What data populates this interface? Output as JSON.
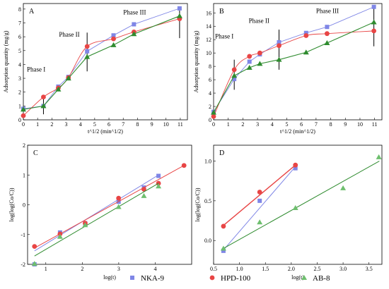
{
  "colors": {
    "nka": "#7f86e6",
    "hpd": "#e84545",
    "ab": "#2e8b2e",
    "ab_light": "#6ebf6e"
  },
  "legend": [
    {
      "label": "NKA-9",
      "marker": "square",
      "color": "#7f86e6"
    },
    {
      "label": "HPD-100",
      "marker": "circle",
      "color": "#e84545"
    },
    {
      "label": "AB-8",
      "marker": "triangle",
      "color": "#6ebf6e"
    }
  ],
  "chart_data": [
    {
      "panel": "A",
      "type": "line",
      "xlabel": "t^1/2 (min^1/2)",
      "ylabel": "Adsorption quantity (mg/g)",
      "xlim": [
        0,
        11.5
      ],
      "ylim": [
        0,
        8.4
      ],
      "xticks": [
        0,
        1,
        2,
        3,
        4,
        5,
        6,
        7,
        8,
        9,
        10,
        11
      ],
      "yticks": [
        0,
        1,
        2,
        3,
        4,
        5,
        6,
        7,
        8
      ],
      "annotations": [
        {
          "text": "Phase I",
          "x": 0.25,
          "y": 3.5
        },
        {
          "text": "Phase II",
          "x": 2.5,
          "y": 6.0
        },
        {
          "text": "Phase III",
          "x": 7.0,
          "y": 7.6
        }
      ],
      "vlines": [
        {
          "x": 1.41,
          "y0": 0.4,
          "y1": 1.6
        },
        {
          "x": 4.47,
          "y0": 3.5,
          "y1": 6.3
        },
        {
          "x": 10.95,
          "y0": 5.9,
          "y1": 7.9
        }
      ],
      "series": [
        {
          "name": "NKA-9",
          "marker": "square",
          "smooth": false,
          "x": [
            0,
            1.41,
            2.45,
            3.16,
            4.47,
            6.32,
            7.75,
            10.95
          ],
          "y": [
            0.8,
            1.0,
            2.4,
            3.1,
            4.95,
            6.1,
            6.9,
            8.05
          ]
        },
        {
          "name": "HPD-100",
          "marker": "circle",
          "smooth": true,
          "x": [
            0,
            1.41,
            2.45,
            3.16,
            4.47,
            6.32,
            7.75,
            10.95
          ],
          "y": [
            0.3,
            1.65,
            2.3,
            3.05,
            5.3,
            5.85,
            6.35,
            7.3
          ]
        },
        {
          "name": "AB-8",
          "marker": "triangle",
          "smooth": false,
          "x": [
            0,
            1.41,
            2.45,
            3.16,
            4.47,
            6.32,
            7.75,
            10.95
          ],
          "y": [
            0.75,
            1.0,
            2.2,
            3.0,
            4.55,
            5.4,
            6.2,
            7.5
          ]
        }
      ]
    },
    {
      "panel": "B",
      "type": "line",
      "xlabel": "t^1/2 (min^1/2)",
      "ylabel": "Adsorption quantity (mg/g)",
      "xlim": [
        0,
        11.5
      ],
      "ylim": [
        0,
        17.4
      ],
      "xticks": [
        0,
        1,
        2,
        3,
        4,
        5,
        6,
        7,
        8,
        9,
        10,
        11
      ],
      "yticks": [
        0,
        2,
        4,
        6,
        8,
        10,
        12,
        14,
        16
      ],
      "annotations": [
        {
          "text": "Phase I",
          "x": 0.1,
          "y": 12.2
        },
        {
          "text": "Phase II",
          "x": 2.4,
          "y": 14.5
        },
        {
          "text": "Phase III",
          "x": 7.0,
          "y": 16.0
        }
      ],
      "vlines": [
        {
          "x": 1.41,
          "y0": 4.5,
          "y1": 9.0
        },
        {
          "x": 4.47,
          "y0": 7.5,
          "y1": 13.5
        },
        {
          "x": 10.95,
          "y0": 11.0,
          "y1": 17.0
        }
      ],
      "series": [
        {
          "name": "NKA-9",
          "marker": "square",
          "smooth": false,
          "x": [
            0,
            1.41,
            2.45,
            3.16,
            4.47,
            6.32,
            7.75,
            10.95
          ],
          "y": [
            1.2,
            6.1,
            8.7,
            9.8,
            11.6,
            13.0,
            13.9,
            16.9
          ]
        },
        {
          "name": "HPD-100",
          "marker": "circle",
          "smooth": true,
          "x": [
            0,
            1.41,
            2.45,
            3.16,
            4.47,
            6.32,
            7.75,
            10.95
          ],
          "y": [
            0.5,
            7.5,
            9.5,
            10.0,
            11.1,
            12.6,
            12.9,
            13.3
          ]
        },
        {
          "name": "AB-8",
          "marker": "triangle",
          "smooth": false,
          "x": [
            0,
            1.41,
            2.45,
            3.16,
            4.47,
            6.32,
            7.75,
            10.95
          ],
          "y": [
            1.1,
            6.6,
            7.8,
            8.4,
            9.0,
            10.1,
            11.5,
            14.6
          ]
        }
      ]
    },
    {
      "panel": "C",
      "type": "scatter",
      "xlabel": "log(t)",
      "ylabel": "log(log(Co/C))",
      "xlim": [
        0.5,
        5.0
      ],
      "ylim": [
        -2,
        2
      ],
      "xticks": [
        1,
        2,
        3,
        4
      ],
      "yticks": [
        -2,
        -1,
        0,
        1,
        2
      ],
      "series": [
        {
          "name": "NKA-9",
          "marker": "square",
          "x": [
            0.69,
            1.39,
            2.08,
            2.996,
            3.69,
            4.09
          ],
          "y": [
            -2.0,
            -0.93,
            -0.62,
            0.1,
            0.58,
            0.97
          ],
          "fit": [
            [
              0.69,
              -1.55
            ],
            [
              4.09,
              1.0
            ]
          ]
        },
        {
          "name": "HPD-100",
          "marker": "circle",
          "x": [
            0.69,
            1.39,
            2.08,
            2.996,
            3.69,
            4.09,
            4.79
          ],
          "y": [
            -1.4,
            -0.98,
            -0.62,
            0.22,
            0.52,
            0.72,
            1.32
          ],
          "fit": [
            [
              0.69,
              -1.45
            ],
            [
              4.79,
              1.32
            ]
          ]
        },
        {
          "name": "AB-8",
          "marker": "triangle",
          "x": [
            0.69,
            1.39,
            2.08,
            2.996,
            3.69,
            4.09
          ],
          "y": [
            -1.98,
            -1.07,
            -0.68,
            -0.07,
            0.3,
            0.62
          ],
          "fit": [
            [
              0.69,
              -1.72
            ],
            [
              4.09,
              0.72
            ]
          ]
        }
      ]
    },
    {
      "panel": "D",
      "type": "scatter",
      "xlabel": "log(t)",
      "ylabel": "log(log(Co/C))",
      "xlim": [
        0.5,
        3.75
      ],
      "ylim": [
        -0.3,
        1.2
      ],
      "xticks": [
        0.5,
        1.0,
        1.5,
        2.0,
        2.5,
        3.0,
        3.5
      ],
      "yticks": [
        0.0,
        0.5,
        1.0
      ],
      "series": [
        {
          "name": "NKA-9",
          "marker": "square",
          "x": [
            0.69,
            1.39,
            2.08
          ],
          "y": [
            -0.13,
            0.5,
            0.91
          ],
          "fit": [
            [
              0.69,
              -0.12
            ],
            [
              2.08,
              0.93
            ]
          ]
        },
        {
          "name": "HPD-100",
          "marker": "circle",
          "x": [
            0.69,
            1.39,
            2.08
          ],
          "y": [
            0.18,
            0.61,
            0.95
          ],
          "fit": [
            [
              0.69,
              0.19
            ],
            [
              2.08,
              0.95
            ]
          ]
        },
        {
          "name": "AB-8",
          "marker": "triangle",
          "x": [
            0.69,
            1.39,
            2.08,
            3.0,
            3.69
          ],
          "y": [
            -0.1,
            0.23,
            0.41,
            0.66,
            1.05
          ],
          "fit": [
            [
              0.69,
              -0.1
            ],
            [
              3.7,
              1.0
            ]
          ]
        }
      ]
    }
  ]
}
